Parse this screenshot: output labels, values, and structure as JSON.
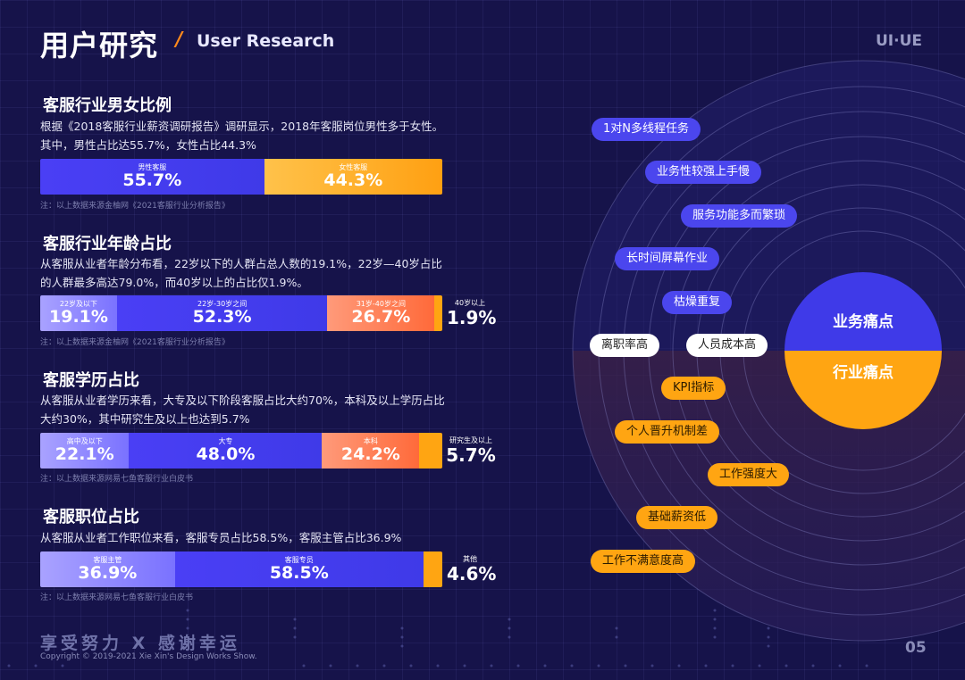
{
  "header": {
    "title_cn": "用户研究",
    "slash": "/",
    "title_en": "User Research",
    "brand": "UI·UE"
  },
  "sections": [
    {
      "title": "客服行业男女比例",
      "desc": "根据《2018客服行业薪资调研报告》调研显示，2018年客服岗位男性多于女性。其中，男性占比达55.7%，女性占比44.3%",
      "note": "注：以上数据来源金柚网《2021客服行业分析报告》",
      "segments": [
        {
          "label": "男性客服",
          "value": "55.7%",
          "pct": 55.7
        },
        {
          "label": "女性客服",
          "value": "44.3%",
          "pct": 44.3
        }
      ]
    },
    {
      "title": "客服行业年龄占比",
      "desc": "从客服从业者年龄分布看，22岁以下的人群占总人数的19.1%，22岁—40岁占比的人群最多高达79.0%，而40岁以上的占比仅1.9%。",
      "note": "注：以上数据来源金柚网《2021客服行业分析报告》",
      "segments": [
        {
          "label": "22岁及以下",
          "value": "19.1%",
          "pct": 19.1
        },
        {
          "label": "22岁-30岁之间",
          "value": "52.3%",
          "pct": 52.3
        },
        {
          "label": "31岁-40岁之间",
          "value": "26.7%",
          "pct": 26.7
        },
        {
          "label": "40岁以上",
          "value": "1.9%",
          "pct": 1.9
        }
      ]
    },
    {
      "title": "客服学历占比",
      "desc": "从客服从业者学历来看，大专及以下阶段客服占比大约70%，本科及以上学历占比大约30%，其中研究生及以上也达到5.7%",
      "note": "注：以上数据来源网易七鱼客服行业白皮书",
      "segments": [
        {
          "label": "高中及以下",
          "value": "22.1%",
          "pct": 22.1
        },
        {
          "label": "大专",
          "value": "48.0%",
          "pct": 48.0
        },
        {
          "label": "本科",
          "value": "24.2%",
          "pct": 24.2
        },
        {
          "label": "研究生及以上",
          "value": "5.7%",
          "pct": 5.7
        }
      ]
    },
    {
      "title": "客服职位占比",
      "desc": "从客服从业者工作职位来看，客服专员占比58.5%，客服主管占比36.9%",
      "note": "注：以上数据来源网易七鱼客服行业白皮书",
      "segments": [
        {
          "label": "客服主管",
          "value": "36.9%",
          "pct": 36.9
        },
        {
          "label": "客服专员",
          "value": "58.5%",
          "pct": 58.5
        },
        {
          "label": "其他",
          "value": "4.6%",
          "pct": 4.6
        }
      ]
    }
  ],
  "pain_points": {
    "business_label": "业务痛点",
    "industry_label": "行业痛点",
    "tags": [
      {
        "text": "1对N多线程任务",
        "type": "blue"
      },
      {
        "text": "业务性较强上手慢",
        "type": "blue"
      },
      {
        "text": "服务功能多而繁琐",
        "type": "blue"
      },
      {
        "text": "长时间屏幕作业",
        "type": "blue"
      },
      {
        "text": "枯燥重复",
        "type": "blue"
      },
      {
        "text": "离职率高",
        "type": "white"
      },
      {
        "text": "人员成本高",
        "type": "white"
      },
      {
        "text": "KPI指标",
        "type": "orange"
      },
      {
        "text": "个人晋升机制差",
        "type": "orange"
      },
      {
        "text": "工作强度大",
        "type": "orange"
      },
      {
        "text": "基础薪资低",
        "type": "orange"
      },
      {
        "text": "工作不满意度高",
        "type": "orange"
      }
    ],
    "colors": {
      "blue": "#4b46ee",
      "orange": "#ffa512"
    }
  },
  "footer": {
    "slogan": "享受努力 X 感谢幸运",
    "copyright": "Copyright © 2019-2021 Xie Xin's Design Works Show.",
    "page": "05"
  }
}
